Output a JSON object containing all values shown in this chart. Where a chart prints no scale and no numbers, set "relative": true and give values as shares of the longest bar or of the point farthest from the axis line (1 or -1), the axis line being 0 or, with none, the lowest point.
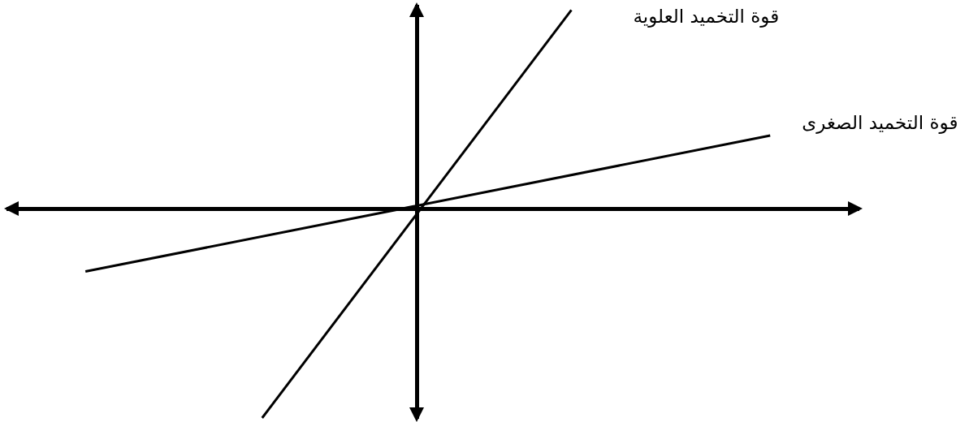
{
  "chart_data": {
    "type": "line",
    "relative": true,
    "categories": [
      null,
      null,
      null,
      null,
      null,
      null,
      null,
      null,
      null,
      null,
      null,
      null,
      null,
      null,
      null,
      null,
      null,
      null,
      null,
      null,
      null,
      null,
      null,
      null,
      null,
      null,
      null,
      null,
      null,
      null,
      null,
      null,
      null,
      null,
      null,
      null,
      null,
      null,
      null,
      null,
      null,
      null,
      null,
      null,
      null,
      null,
      null,
      null,
      null,
      null,
      null,
      null,
      null,
      null,
      null,
      null,
      null,
      null,
      null,
      null,
      null,
      null,
      null,
      null,
      null,
      null,
      null,
      null,
      null,
      null,
      null,
      null,
      null,
      null,
      null,
      null,
      null,
      null
    ],
    "series": [
      {
        "name": "قوة التخميد العلوية",
        "color": "#000000",
        "values": [
          null,
          null,
          null,
          null,
          null,
          null,
          null,
          null,
          null,
          null,
          null,
          null,
          null,
          null,
          null,
          null,
          null,
          null,
          null,
          null,
          null,
          null,
          null,
          -1,
          null,
          null,
          null,
          null,
          null,
          null,
          null,
          null,
          null,
          null,
          null,
          null,
          null,
          null,
          null,
          null,
          null,
          null,
          null,
          null,
          null,
          null,
          null,
          null,
          null,
          null,
          null,
          0.95,
          null,
          null,
          null,
          null,
          null,
          null,
          null,
          null,
          null,
          null,
          null,
          null,
          null,
          null,
          null,
          null,
          null,
          null,
          null,
          null,
          null,
          null,
          null,
          null,
          null,
          null
        ]
      },
      {
        "name": "قوة التخميد الصغرى",
        "color": "#000000",
        "values": [
          null,
          null,
          null,
          null,
          null,
          null,
          null,
          -0.3,
          null,
          null,
          null,
          null,
          null,
          null,
          null,
          null,
          null,
          null,
          null,
          null,
          null,
          null,
          null,
          null,
          null,
          null,
          null,
          null,
          null,
          null,
          null,
          null,
          null,
          null,
          null,
          null,
          null,
          null,
          null,
          null,
          null,
          null,
          null,
          null,
          null,
          null,
          null,
          null,
          null,
          null,
          null,
          null,
          null,
          null,
          null,
          null,
          null,
          null,
          null,
          null,
          null,
          null,
          null,
          null,
          null,
          null,
          null,
          null,
          null,
          0.35,
          null,
          null,
          null,
          null,
          null,
          null,
          null,
          null
        ]
      }
    ]
  }
}
